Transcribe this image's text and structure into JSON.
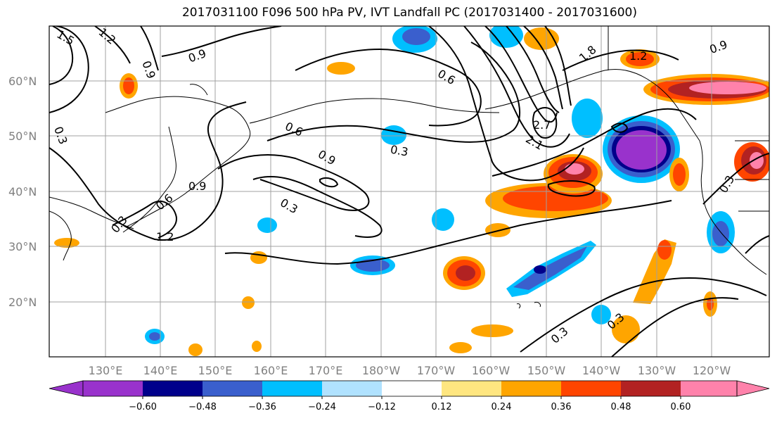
{
  "title": "2017031100 F096 500 hPa PV, IVT Landfall PC (2017031400 - 2017031600)",
  "lat_labels": [
    "60°N",
    "50°N",
    "40°N",
    "30°N",
    "20°N"
  ],
  "lon_labels": [
    "130°E",
    "140°E",
    "150°E",
    "160°E",
    "170°E",
    "180°W",
    "170°W",
    "160°W",
    "150°W",
    "140°W",
    "130°W",
    "120°W"
  ],
  "contour_labels": [
    "1.5",
    "1.2",
    "0.9",
    "0.9",
    "0.6",
    "0.6",
    "0.3",
    "0.6",
    "0.9",
    "0.3",
    "0.9",
    "1.2",
    "0.3",
    "2.7",
    "2.1",
    "1.8",
    "1.2",
    "0.9",
    "0.3",
    "0.3",
    "0.3",
    "0.3"
  ],
  "colorbar": {
    "ticks": [
      "−0.60",
      "−0.48",
      "−0.36",
      "−0.24",
      "−0.12",
      "0.12",
      "0.24",
      "0.36",
      "0.48",
      "0.60"
    ],
    "colors": [
      "#9932cc",
      "#00008b",
      "#3a5fcd",
      "#00bfff",
      "#b0e2ff",
      "#ffffff",
      "#ffe680",
      "#ffa500",
      "#ff4500",
      "#b22222",
      "#ff82ab"
    ]
  }
}
